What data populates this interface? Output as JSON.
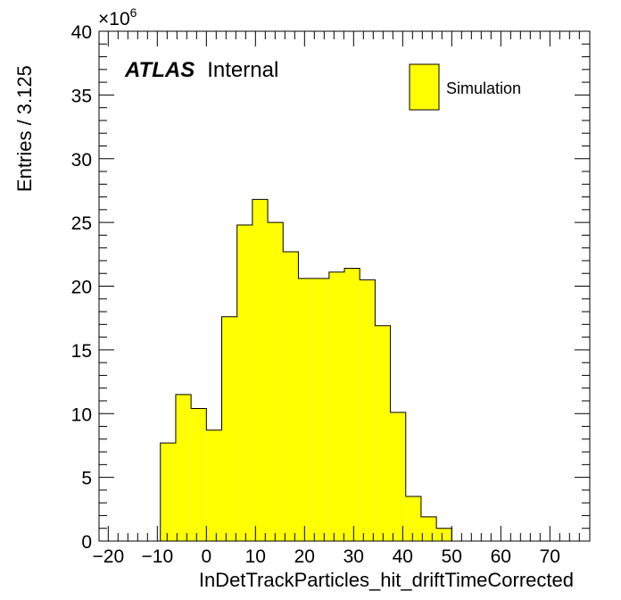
{
  "chart_data": {
    "type": "bar",
    "xlabel": "InDetTrackParticles_hit_driftTimeCorrected",
    "ylabel": "Entries / 3.125",
    "xlim": [
      -21.875,
      78.125
    ],
    "ylim": [
      0,
      40
    ],
    "x_ticks": [
      "−20",
      "−10",
      "0",
      "10",
      "20",
      "30",
      "40",
      "50",
      "60",
      "70"
    ],
    "y_ticks": [
      "0",
      "5",
      "10",
      "15",
      "20",
      "25",
      "30",
      "35",
      "40"
    ],
    "y_multiplier": {
      "base": "×10",
      "exponent": "6"
    },
    "bin_width": 3.125,
    "bin_edges_start": -9.375,
    "values": [
      7.7,
      11.5,
      10.4,
      8.7,
      17.6,
      24.8,
      26.8,
      25.0,
      22.7,
      20.6,
      20.6,
      21.1,
      21.4,
      20.5,
      16.9,
      10.1,
      3.5,
      1.9,
      1.0
    ],
    "series": [
      {
        "name": "Simulation",
        "color": "#ffff00"
      }
    ],
    "annotation": {
      "bold": "ATLAS",
      "text": "Internal"
    },
    "legend_position": "top-right",
    "grid": false
  }
}
